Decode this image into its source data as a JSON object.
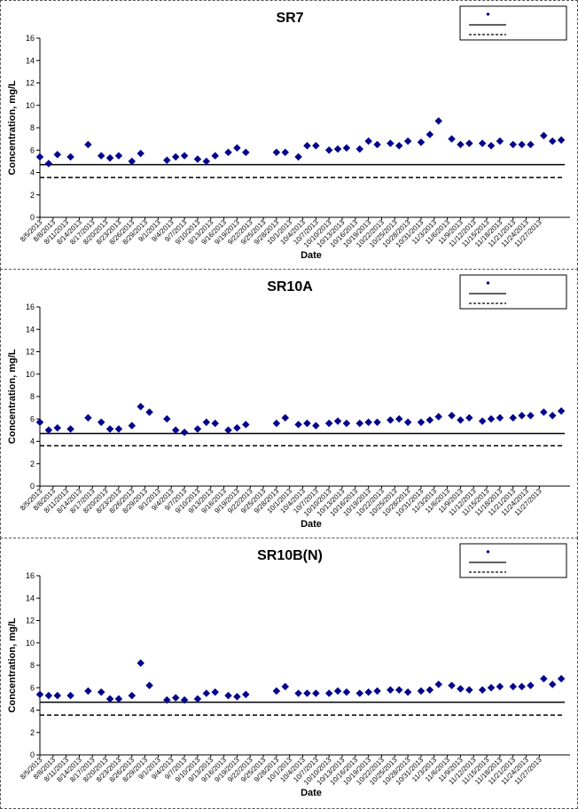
{
  "chart_data": [
    {
      "type": "scatter",
      "title": "SR7",
      "xlabel": "Date",
      "ylabel": "Concentration, mg/L",
      "ylim": [
        0,
        16
      ],
      "yticks": [
        0,
        2,
        4,
        6,
        8,
        10,
        12,
        14,
        16
      ],
      "legend": {
        "placement": "top-right",
        "entries": [
          "",
          "",
          ""
        ]
      },
      "reference_lines": [
        {
          "style": "solid",
          "value": 4.7
        },
        {
          "style": "dashed",
          "value": 3.55
        }
      ],
      "xtick_labels": [
        "8/5/2013",
        "8/8/2013",
        "8/11/2013",
        "8/14/2013",
        "8/17/2013",
        "8/20/2013",
        "8/23/2013",
        "8/26/2013",
        "8/29/2013",
        "9/1/2013",
        "9/4/2013",
        "9/7/2013",
        "9/10/2013",
        "9/13/2013",
        "9/16/2013",
        "9/19/2013",
        "9/22/2013",
        "9/25/2013",
        "9/28/2013",
        "10/1/2013",
        "10/4/2013",
        "10/7/2013",
        "10/10/2013",
        "10/13/2013",
        "10/16/2013",
        "10/19/2013",
        "10/22/2013",
        "10/25/2013",
        "10/28/2013",
        "10/31/2013",
        "11/3/2013",
        "11/6/2013",
        "11/9/2013",
        "11/12/2013",
        "11/15/2013",
        "11/18/2013",
        "11/21/2013",
        "11/24/2013",
        "11/27/2013"
      ],
      "points": [
        [
          "2013-08-05",
          5.4
        ],
        [
          "2013-08-07",
          4.8
        ],
        [
          "2013-08-09",
          5.6
        ],
        [
          "2013-08-12",
          5.4
        ],
        [
          "2013-08-16",
          6.5
        ],
        [
          "2013-08-19",
          5.5
        ],
        [
          "2013-08-21",
          5.3
        ],
        [
          "2013-08-23",
          5.5
        ],
        [
          "2013-08-26",
          5.0
        ],
        [
          "2013-08-28",
          5.7
        ],
        [
          "2013-09-03",
          5.1
        ],
        [
          "2013-09-05",
          5.4
        ],
        [
          "2013-09-07",
          5.5
        ],
        [
          "2013-09-10",
          5.2
        ],
        [
          "2013-09-12",
          5.0
        ],
        [
          "2013-09-14",
          5.5
        ],
        [
          "2013-09-17",
          5.8
        ],
        [
          "2013-09-19",
          6.2
        ],
        [
          "2013-09-21",
          5.8
        ],
        [
          "2013-09-28",
          5.8
        ],
        [
          "2013-09-30",
          5.8
        ],
        [
          "2013-10-03",
          5.4
        ],
        [
          "2013-10-05",
          6.4
        ],
        [
          "2013-10-07",
          6.4
        ],
        [
          "2013-10-10",
          6.0
        ],
        [
          "2013-10-12",
          6.1
        ],
        [
          "2013-10-14",
          6.2
        ],
        [
          "2013-10-17",
          6.1
        ],
        [
          "2013-10-19",
          6.8
        ],
        [
          "2013-10-21",
          6.5
        ],
        [
          "2013-10-24",
          6.6
        ],
        [
          "2013-10-26",
          6.4
        ],
        [
          "2013-10-28",
          6.8
        ],
        [
          "2013-10-31",
          6.7
        ],
        [
          "2013-11-02",
          7.4
        ],
        [
          "2013-11-04",
          8.6
        ],
        [
          "2013-11-07",
          7.0
        ],
        [
          "2013-11-09",
          6.5
        ],
        [
          "2013-11-11",
          6.6
        ],
        [
          "2013-11-14",
          6.6
        ],
        [
          "2013-11-16",
          6.4
        ],
        [
          "2013-11-18",
          6.8
        ],
        [
          "2013-11-21",
          6.5
        ],
        [
          "2013-11-23",
          6.5
        ],
        [
          "2013-11-25",
          6.5
        ],
        [
          "2013-11-28",
          7.3
        ],
        [
          "2013-11-30",
          6.8
        ],
        [
          "2013-12-02",
          6.9
        ]
      ]
    },
    {
      "type": "scatter",
      "title": "SR10A",
      "xlabel": "Date",
      "ylabel": "Concentration, mg/L",
      "ylim": [
        0,
        16
      ],
      "yticks": [
        0,
        2,
        4,
        6,
        8,
        10,
        12,
        14,
        16
      ],
      "legend": {
        "placement": "top-right",
        "entries": [
          "",
          "",
          ""
        ]
      },
      "reference_lines": [
        {
          "style": "solid",
          "value": 4.7
        },
        {
          "style": "dashed",
          "value": 3.6
        }
      ],
      "xtick_labels": [
        "8/5/2013",
        "8/8/2013",
        "8/11/2013",
        "8/14/2013",
        "8/17/2013",
        "8/20/2013",
        "8/23/2013",
        "8/26/2013",
        "8/29/2013",
        "9/1/2013",
        "9/4/2013",
        "9/7/2013",
        "9/10/2013",
        "9/13/2013",
        "9/16/2013",
        "9/19/2013",
        "9/22/2013",
        "9/25/2013",
        "9/28/2013",
        "10/1/2013",
        "10/4/2013",
        "10/7/2013",
        "10/10/2013",
        "10/13/2013",
        "10/16/2013",
        "10/19/2013",
        "10/22/2013",
        "10/25/2013",
        "10/28/2013",
        "10/31/2013",
        "11/3/2013",
        "11/6/2013",
        "11/9/2013",
        "11/12/2013",
        "11/15/2013",
        "11/18/2013",
        "11/21/2013",
        "11/24/2013",
        "11/27/2013"
      ],
      "points": [
        [
          "2013-08-05",
          5.7
        ],
        [
          "2013-08-07",
          5.0
        ],
        [
          "2013-08-09",
          5.2
        ],
        [
          "2013-08-12",
          5.1
        ],
        [
          "2013-08-16",
          6.1
        ],
        [
          "2013-08-19",
          5.7
        ],
        [
          "2013-08-21",
          5.1
        ],
        [
          "2013-08-23",
          5.1
        ],
        [
          "2013-08-26",
          5.4
        ],
        [
          "2013-08-28",
          7.1
        ],
        [
          "2013-08-30",
          6.6
        ],
        [
          "2013-09-03",
          6.0
        ],
        [
          "2013-09-05",
          5.0
        ],
        [
          "2013-09-07",
          4.8
        ],
        [
          "2013-09-10",
          5.1
        ],
        [
          "2013-09-12",
          5.7
        ],
        [
          "2013-09-14",
          5.6
        ],
        [
          "2013-09-17",
          5.0
        ],
        [
          "2013-09-19",
          5.2
        ],
        [
          "2013-09-21",
          5.5
        ],
        [
          "2013-09-28",
          5.6
        ],
        [
          "2013-09-30",
          6.1
        ],
        [
          "2013-10-03",
          5.5
        ],
        [
          "2013-10-05",
          5.6
        ],
        [
          "2013-10-07",
          5.4
        ],
        [
          "2013-10-10",
          5.6
        ],
        [
          "2013-10-12",
          5.8
        ],
        [
          "2013-10-14",
          5.6
        ],
        [
          "2013-10-17",
          5.6
        ],
        [
          "2013-10-19",
          5.7
        ],
        [
          "2013-10-21",
          5.7
        ],
        [
          "2013-10-24",
          5.9
        ],
        [
          "2013-10-26",
          6.0
        ],
        [
          "2013-10-28",
          5.7
        ],
        [
          "2013-10-31",
          5.7
        ],
        [
          "2013-11-02",
          5.9
        ],
        [
          "2013-11-04",
          6.2
        ],
        [
          "2013-11-07",
          6.3
        ],
        [
          "2013-11-09",
          5.9
        ],
        [
          "2013-11-11",
          6.1
        ],
        [
          "2013-11-14",
          5.8
        ],
        [
          "2013-11-16",
          6.0
        ],
        [
          "2013-11-18",
          6.1
        ],
        [
          "2013-11-21",
          6.1
        ],
        [
          "2013-11-23",
          6.3
        ],
        [
          "2013-11-25",
          6.3
        ],
        [
          "2013-11-28",
          6.6
        ],
        [
          "2013-11-30",
          6.3
        ],
        [
          "2013-12-02",
          6.7
        ]
      ]
    },
    {
      "type": "scatter",
      "title": "SR10B(N)",
      "xlabel": "Date",
      "ylabel": "Concentration, mg/L",
      "ylim": [
        0,
        16
      ],
      "yticks": [
        0,
        2,
        4,
        6,
        8,
        10,
        12,
        14,
        16
      ],
      "legend": {
        "placement": "top-right",
        "entries": [
          "",
          "",
          ""
        ]
      },
      "reference_lines": [
        {
          "style": "solid",
          "value": 4.7
        },
        {
          "style": "dashed",
          "value": 3.55
        }
      ],
      "xtick_labels": [
        "8/5/2013",
        "8/8/2013",
        "8/11/2013",
        "8/14/2013",
        "8/17/2013",
        "8/20/2013",
        "8/23/2013",
        "8/26/2013",
        "8/29/2013",
        "9/1/2013",
        "9/4/2013",
        "9/7/2013",
        "9/10/2013",
        "9/13/2013",
        "9/16/2013",
        "9/19/2013",
        "9/22/2013",
        "9/25/2013",
        "9/28/2013",
        "10/1/2013",
        "10/4/2013",
        "10/7/2013",
        "10/10/2013",
        "10/13/2013",
        "10/16/2013",
        "10/19/2013",
        "10/22/2013",
        "10/25/2013",
        "10/28/2013",
        "10/31/2013",
        "11/3/2013",
        "11/6/2013",
        "11/9/2013",
        "11/12/2013",
        "11/15/2013",
        "11/18/2013",
        "11/21/2013",
        "11/24/2013",
        "11/27/2013"
      ],
      "points": [
        [
          "2013-08-05",
          5.4
        ],
        [
          "2013-08-07",
          5.3
        ],
        [
          "2013-08-09",
          5.3
        ],
        [
          "2013-08-12",
          5.3
        ],
        [
          "2013-08-16",
          5.7
        ],
        [
          "2013-08-19",
          5.6
        ],
        [
          "2013-08-21",
          5.0
        ],
        [
          "2013-08-23",
          5.0
        ],
        [
          "2013-08-26",
          5.3
        ],
        [
          "2013-08-28",
          8.2
        ],
        [
          "2013-08-30",
          6.2
        ],
        [
          "2013-09-03",
          4.9
        ],
        [
          "2013-09-05",
          5.1
        ],
        [
          "2013-09-07",
          4.9
        ],
        [
          "2013-09-10",
          5.0
        ],
        [
          "2013-09-12",
          5.5
        ],
        [
          "2013-09-14",
          5.6
        ],
        [
          "2013-09-17",
          5.3
        ],
        [
          "2013-09-19",
          5.2
        ],
        [
          "2013-09-21",
          5.4
        ],
        [
          "2013-09-28",
          5.7
        ],
        [
          "2013-09-30",
          6.1
        ],
        [
          "2013-10-03",
          5.5
        ],
        [
          "2013-10-05",
          5.5
        ],
        [
          "2013-10-07",
          5.5
        ],
        [
          "2013-10-10",
          5.5
        ],
        [
          "2013-10-12",
          5.7
        ],
        [
          "2013-10-14",
          5.6
        ],
        [
          "2013-10-17",
          5.5
        ],
        [
          "2013-10-19",
          5.6
        ],
        [
          "2013-10-21",
          5.7
        ],
        [
          "2013-10-24",
          5.8
        ],
        [
          "2013-10-26",
          5.8
        ],
        [
          "2013-10-28",
          5.6
        ],
        [
          "2013-10-31",
          5.7
        ],
        [
          "2013-11-02",
          5.8
        ],
        [
          "2013-11-04",
          6.3
        ],
        [
          "2013-11-07",
          6.2
        ],
        [
          "2013-11-09",
          5.9
        ],
        [
          "2013-11-11",
          5.8
        ],
        [
          "2013-11-14",
          5.8
        ],
        [
          "2013-11-16",
          6.0
        ],
        [
          "2013-11-18",
          6.1
        ],
        [
          "2013-11-21",
          6.1
        ],
        [
          "2013-11-23",
          6.1
        ],
        [
          "2013-11-25",
          6.2
        ],
        [
          "2013-11-28",
          6.8
        ],
        [
          "2013-11-30",
          6.3
        ],
        [
          "2013-12-02",
          6.8
        ]
      ]
    }
  ],
  "colors": {
    "marker": "#00008B",
    "reference_line": "#000000",
    "axis": "#000000"
  }
}
